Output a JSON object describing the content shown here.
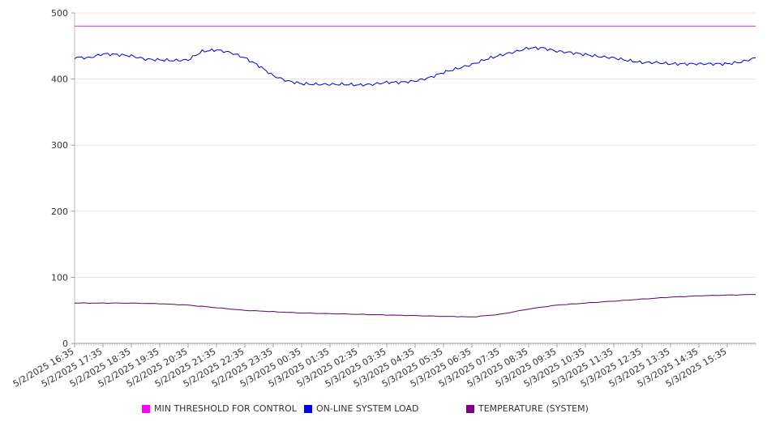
{
  "chart_data": {
    "type": "line",
    "title": "",
    "xlabel": "",
    "ylabel": "",
    "ylim": [
      0,
      500
    ],
    "grid": true,
    "legend_position": "bottom",
    "y_ticks": [
      "0",
      "100",
      "200",
      "300",
      "400",
      "500"
    ],
    "x_tick_labels": [
      "5/2/2025 16:35",
      "5/2/2025 17:35",
      "5/2/2025 18:35",
      "5/2/2025 19:35",
      "5/2/2025 20:35",
      "5/2/2025 21:35",
      "5/2/2025 22:35",
      "5/2/2025 23:35",
      "5/3/2025 00:35",
      "5/3/2025 01:35",
      "5/3/2025 02:35",
      "5/3/2025 03:35",
      "5/3/2025 04:35",
      "5/3/2025 05:35",
      "5/3/2025 06:35",
      "5/3/2025 07:35",
      "5/3/2025 08:35",
      "5/3/2025 09:35",
      "5/3/2025 10:35",
      "5/3/2025 11:35",
      "5/3/2025 12:35",
      "5/3/2025 13:35",
      "5/3/2025 14:35",
      "5/3/2025 15:35"
    ],
    "x_range": [
      "5/2/2025 16:35",
      "5/3/2025 16:35"
    ],
    "series": [
      {
        "name": "MIN THRESHOLD FOR CONTROL",
        "color": "#ff00ff",
        "line_color": "#cc33cc",
        "x": [
          "5/2/2025 16:35",
          "5/3/2025 16:35"
        ],
        "values": [
          480,
          480
        ]
      },
      {
        "name": "ON-LINE SYSTEM LOAD",
        "color": "#0000ff",
        "line_color": "#0000cc",
        "x": [
          "5/2/2025 16:35",
          "5/2/2025 17:05",
          "5/2/2025 17:35",
          "5/2/2025 18:05",
          "5/2/2025 18:35",
          "5/2/2025 19:05",
          "5/2/2025 19:35",
          "5/2/2025 20:05",
          "5/2/2025 20:35",
          "5/2/2025 21:05",
          "5/2/2025 21:35",
          "5/2/2025 22:05",
          "5/2/2025 22:35",
          "5/2/2025 23:05",
          "5/2/2025 23:35",
          "5/3/2025 00:05",
          "5/3/2025 00:35",
          "5/3/2025 01:05",
          "5/3/2025 01:35",
          "5/3/2025 02:05",
          "5/3/2025 02:35",
          "5/3/2025 03:05",
          "5/3/2025 03:35",
          "5/3/2025 04:05",
          "5/3/2025 04:35",
          "5/3/2025 05:05",
          "5/3/2025 05:35",
          "5/3/2025 06:05",
          "5/3/2025 06:35",
          "5/3/2025 07:05",
          "5/3/2025 07:35",
          "5/3/2025 08:05",
          "5/3/2025 08:35",
          "5/3/2025 09:05",
          "5/3/2025 09:35",
          "5/3/2025 10:05",
          "5/3/2025 10:35",
          "5/3/2025 11:05",
          "5/3/2025 11:35",
          "5/3/2025 12:05",
          "5/3/2025 12:35",
          "5/3/2025 13:05",
          "5/3/2025 13:35",
          "5/3/2025 14:05",
          "5/3/2025 14:35",
          "5/3/2025 15:05",
          "5/3/2025 15:35",
          "5/3/2025 16:05",
          "5/3/2025 16:35"
        ],
        "values": [
          433,
          432,
          438,
          437,
          435,
          430,
          429,
          428,
          429,
          442,
          444,
          440,
          432,
          420,
          405,
          397,
          393,
          392,
          392,
          392,
          391,
          392,
          395,
          395,
          397,
          402,
          410,
          416,
          422,
          430,
          436,
          441,
          447,
          447,
          442,
          440,
          437,
          434,
          432,
          428,
          425,
          425,
          423,
          423,
          423,
          423,
          423,
          426,
          432
        ]
      },
      {
        "name": "TEMPERATURE (SYSTEM)",
        "color": "#800080",
        "line_color": "#660066",
        "x": [
          "5/2/2025 16:35",
          "5/2/2025 17:35",
          "5/2/2025 18:35",
          "5/2/2025 19:35",
          "5/2/2025 20:35",
          "5/2/2025 21:35",
          "5/2/2025 22:35",
          "5/2/2025 23:35",
          "5/3/2025 00:35",
          "5/3/2025 01:35",
          "5/3/2025 02:35",
          "5/3/2025 03:35",
          "5/3/2025 04:35",
          "5/3/2025 05:35",
          "5/3/2025 06:35",
          "5/3/2025 07:35",
          "5/3/2025 08:35",
          "5/3/2025 09:35",
          "5/3/2025 10:35",
          "5/3/2025 11:35",
          "5/3/2025 12:35",
          "5/3/2025 13:35",
          "5/3/2025 14:35",
          "5/3/2025 15:35",
          "5/3/2025 16:35"
        ],
        "values": [
          61,
          61,
          61,
          60,
          58,
          54,
          50,
          48,
          46,
          45,
          44,
          43,
          42,
          41,
          40,
          44,
          52,
          58,
          61,
          64,
          67,
          70,
          72,
          73,
          74
        ]
      }
    ]
  }
}
